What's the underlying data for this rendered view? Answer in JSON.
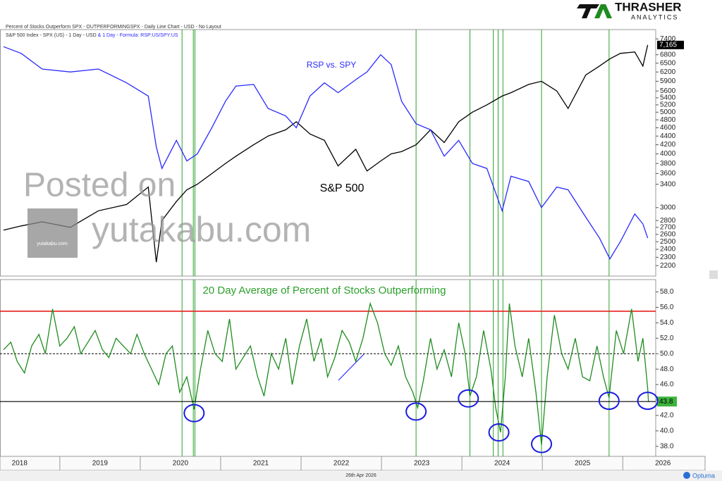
{
  "header": {
    "line1": "Percent of Stocks Outperform SPX  - OUTPERFORMINGSPX - Daily Line Chart - USD - No Layout",
    "line2a": "S&P 500 Index - SPX (US) - 1 Day - USD",
    "line2b": "& 1 Day - Formula: RSP:US/SPY:US"
  },
  "logo": {
    "name": "THRASHER",
    "sub": "ANALYTICS"
  },
  "watermark": {
    "line1": "Posted on",
    "line2": "yutakabu.com",
    "badge": "yutakabu.com"
  },
  "footer": {
    "date": "26th Apr 2026",
    "brand": "Optuma"
  },
  "chart_data": [
    {
      "type": "line",
      "log_scale": true,
      "x": [
        2018.3,
        2018.52,
        2018.78,
        2019.13,
        2019.48,
        2019.83,
        2020.1,
        2020.2,
        2020.27,
        2020.45,
        2020.58,
        2020.71,
        2020.89,
        2021.06,
        2021.19,
        2021.41,
        2021.59,
        2021.81,
        2021.94,
        2022.11,
        2022.29,
        2022.46,
        2022.68,
        2022.82,
        2022.99,
        2023.12,
        2023.25,
        2023.43,
        2023.61,
        2023.78,
        2023.96,
        2024.13,
        2024.31,
        2024.5,
        2024.61,
        2024.83,
        2024.99,
        2025.18,
        2025.32,
        2025.54,
        2025.71,
        2025.84,
        2025.97,
        2026.15,
        2026.25,
        2026.31
      ],
      "series": [
        {
          "name": "S&P 500",
          "color": "#000000",
          "values": [
            2660,
            2720,
            2780,
            2700,
            2950,
            3050,
            3350,
            2240,
            2800,
            3100,
            3300,
            3400,
            3600,
            3800,
            3950,
            4200,
            4400,
            4550,
            4750,
            4450,
            4300,
            3750,
            4100,
            3650,
            3850,
            4000,
            4050,
            4200,
            4550,
            4250,
            4750,
            5000,
            5200,
            5450,
            5550,
            5800,
            5900,
            5600,
            5100,
            6100,
            6400,
            6650,
            6850,
            6900,
            6400,
            7165
          ],
          "value_labels": [
            null,
            null,
            null,
            null,
            null,
            null,
            null,
            null,
            null,
            null,
            null,
            null,
            null,
            null,
            null,
            null,
            null,
            null,
            null,
            null,
            null,
            null,
            null,
            null,
            null,
            null,
            null,
            null,
            null,
            null,
            null,
            null,
            null,
            null,
            null,
            null,
            null,
            null,
            null,
            null,
            null,
            null,
            null,
            null,
            null,
            "7,165"
          ]
        },
        {
          "name": "RSP vs. SPY",
          "color": "#2a2aff",
          "values": [
            7100,
            6850,
            6300,
            6200,
            6300,
            5850,
            5450,
            4150,
            3700,
            4300,
            3850,
            4000,
            4600,
            5300,
            5750,
            5800,
            5100,
            4900,
            4600,
            5450,
            5850,
            5550,
            5950,
            6200,
            6800,
            6450,
            5300,
            4700,
            4550,
            3950,
            4300,
            3800,
            3700,
            2950,
            3550,
            3450,
            3000,
            3350,
            3300,
            2850,
            2550,
            2280,
            2500,
            2900,
            2750,
            2550
          ]
        }
      ],
      "xlim": [
        2018.3,
        2026.41
      ],
      "ylim": [
        2080,
        7780
      ],
      "yticks": [
        7400,
        6800,
        6500,
        6200,
        5900,
        5600,
        5400,
        5200,
        5000,
        4800,
        4600,
        4400,
        4200,
        4000,
        3800,
        3600,
        3400,
        3000,
        2800,
        2700,
        2600,
        2500,
        2400,
        2300,
        2200
      ]
    },
    {
      "type": "line",
      "title": "20 Day Average of Percent of Stocks Outperforming",
      "x": [
        2018.3,
        2018.39,
        2018.47,
        2018.56,
        2018.65,
        2018.74,
        2018.82,
        2018.91,
        2019.0,
        2019.09,
        2019.18,
        2019.26,
        2019.35,
        2019.44,
        2019.53,
        2019.61,
        2019.7,
        2019.79,
        2019.88,
        2019.96,
        2020.05,
        2020.14,
        2020.23,
        2020.32,
        2020.4,
        2020.49,
        2020.58,
        2020.67,
        2020.75,
        2020.84,
        2020.93,
        2021.02,
        2021.11,
        2021.19,
        2021.28,
        2021.37,
        2021.46,
        2021.54,
        2021.63,
        2021.72,
        2021.81,
        2021.89,
        2021.98,
        2022.07,
        2022.16,
        2022.25,
        2022.33,
        2022.42,
        2022.51,
        2022.6,
        2022.68,
        2022.77,
        2022.86,
        2022.95,
        2023.04,
        2023.12,
        2023.21,
        2023.3,
        2023.39,
        2023.45,
        2023.52,
        2023.61,
        2023.69,
        2023.78,
        2023.87,
        2023.96,
        2024.04,
        2024.1,
        2024.18,
        2024.27,
        2024.36,
        2024.42,
        2024.48,
        2024.54,
        2024.59,
        2024.66,
        2024.75,
        2024.83,
        2024.92,
        2024.99,
        2025.06,
        2025.15,
        2025.24,
        2025.32,
        2025.41,
        2025.5,
        2025.59,
        2025.68,
        2025.76,
        2025.83,
        2025.92,
        2026.01,
        2026.11,
        2026.19,
        2026.25,
        2026.31,
        2026.32
      ],
      "series": [
        {
          "name": "Percent of Stocks Outperform SPX",
          "color": "#1e8c1e",
          "values": [
            50.5,
            51.5,
            49,
            47.5,
            51,
            52.5,
            50,
            55.8,
            51,
            52,
            53.5,
            50,
            51.5,
            53,
            50.5,
            49.5,
            52,
            51,
            50,
            52.5,
            50,
            48,
            46,
            50,
            51,
            45,
            47,
            42.8,
            48,
            53,
            50,
            49,
            54.5,
            48,
            49.5,
            51,
            47,
            44.5,
            50,
            48,
            52,
            46,
            51,
            54.5,
            49,
            52,
            47,
            49.5,
            53,
            51.5,
            49,
            52,
            56.5,
            54,
            50,
            48.5,
            51,
            47,
            45,
            43,
            46.5,
            52,
            48,
            50.5,
            47,
            54,
            50,
            44.5,
            47,
            53,
            48,
            43,
            39.8,
            47,
            56.5,
            51,
            47,
            52,
            45,
            38.2,
            47,
            55,
            50,
            48,
            52,
            47,
            46.5,
            51,
            47,
            44.3,
            53,
            50,
            55.8,
            49,
            52,
            45.5,
            43.8
          ]
        }
      ],
      "xlim": [
        2018.3,
        2026.41
      ],
      "ylim": [
        36.7,
        59.6
      ],
      "yticks": [
        {
          "value": 38,
          "label": "38.0"
        },
        {
          "value": 40,
          "label": "40.0"
        },
        {
          "value": 42,
          "label": "42.0"
        },
        {
          "value": 44,
          "label": "44.0"
        },
        {
          "value": 46,
          "label": "46.0"
        },
        {
          "value": 48,
          "label": "48.0"
        },
        {
          "value": 50,
          "label": "50.0"
        },
        {
          "value": 52,
          "label": "52.0"
        },
        {
          "value": 54,
          "label": "54.0"
        },
        {
          "value": 56,
          "label": "56.0"
        },
        {
          "value": 58,
          "label": "58.0"
        }
      ],
      "xticks": [
        2018,
        2019,
        2020,
        2021,
        2022,
        2023,
        2024,
        2025,
        2026
      ],
      "hlines": [
        {
          "value": 55.5,
          "color": "#e8201c",
          "dashed": false
        },
        {
          "value": 50,
          "color": "#000000",
          "dashed": true
        }
      ],
      "vlines": [
        2020.52,
        2020.66,
        2020.68,
        2023.43,
        2024.1,
        2024.39,
        2024.45,
        2024.51,
        2024.99,
        2025.83
      ],
      "circles": [
        {
          "x": 2020.67,
          "y": 42.3
        },
        {
          "x": 2023.43,
          "y": 42.5
        },
        {
          "x": 2024.08,
          "y": 44.2
        },
        {
          "x": 2024.46,
          "y": 39.8
        },
        {
          "x": 2024.99,
          "y": 38.3
        },
        {
          "x": 2025.83,
          "y": 43.9
        },
        {
          "x": 2026.31,
          "y": 43.9
        }
      ]
    }
  ]
}
